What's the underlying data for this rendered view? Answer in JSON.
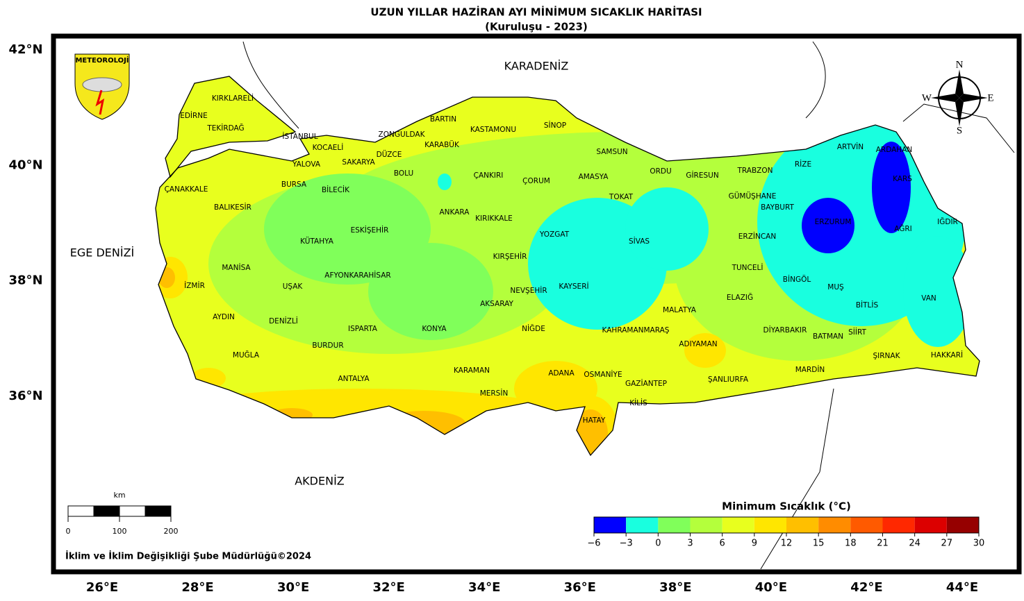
{
  "header": {
    "title": "UZUN YILLAR HAZİRAN AYI MİNİMUM SICAKLIK HARİTASI",
    "subtitle": "(Kuruluşu - 2023)"
  },
  "logo": {
    "text": "METEOROLOJİ"
  },
  "compass": {
    "north": "N",
    "east": "E",
    "south": "S",
    "west": "W"
  },
  "seas": [
    "KARADENİZ",
    "EGE DENİZİ",
    "AKDENİZ"
  ],
  "latitude_labels": [
    {
      "value": 42,
      "label": "42°N"
    },
    {
      "value": 40,
      "label": "40°N"
    },
    {
      "value": 38,
      "label": "38°N"
    },
    {
      "value": 36,
      "label": "36°N"
    }
  ],
  "longitude_labels": [
    {
      "value": 26,
      "label": "26°E"
    },
    {
      "value": 28,
      "label": "28°E"
    },
    {
      "value": 30,
      "label": "30°E"
    },
    {
      "value": 32,
      "label": "32°E"
    },
    {
      "value": 34,
      "label": "34°E"
    },
    {
      "value": 36,
      "label": "36°E"
    },
    {
      "value": 38,
      "label": "38°E"
    },
    {
      "value": 40,
      "label": "40°E"
    },
    {
      "value": 42,
      "label": "42°E"
    },
    {
      "value": 44,
      "label": "44°E"
    }
  ],
  "provinces": [
    "KIRKLARELİ",
    "EDİRNE",
    "TEKİRDAĞ",
    "İSTANBUL",
    "KOCAELİ",
    "YALOVA",
    "SAKARYA",
    "DÜZCE",
    "ZONGULDAK",
    "BARTIN",
    "KARABÜK",
    "KASTAMONU",
    "SİNOP",
    "SAMSUN",
    "ORDU",
    "GİRESUN",
    "TRABZON",
    "RİZE",
    "ARTVİN",
    "ARDAHAN",
    "KARS",
    "ÇANAKKALE",
    "BURSA",
    "BİLECİK",
    "BOLU",
    "ÇANKIRI",
    "ÇORUM",
    "AMASYA",
    "TOKAT",
    "GÜMÜŞHANE",
    "BAYBURT",
    "ERZURUM",
    "AĞRI",
    "IĞDIR",
    "BALIKESİR",
    "ANKARA",
    "KIRIKKALE",
    "YOZGAT",
    "SİVAS",
    "ERZİNCAN",
    "ESKİŞEHİR",
    "KÜTAHYA",
    "MANİSA",
    "KIRŞEHİR",
    "TUNCELİ",
    "AFYONKARAHİSAR",
    "UŞAK",
    "İZMİR",
    "KAYSERİ",
    "NEVŞEHİR",
    "BİNGÖL",
    "MUŞ",
    "ELAZIĞ",
    "VAN",
    "AKSARAY",
    "BİTLİS",
    "MALATYA",
    "AYDIN",
    "DENİZLİ",
    "ISPARTA",
    "KONYA",
    "NİĞDE",
    "KAHRAMANMARAŞ",
    "DİYARBAKIR",
    "SİİRT",
    "BATMAN",
    "ADIYAMAN",
    "BURDUR",
    "MUĞLA",
    "ŞIRNAK",
    "HAKKARİ",
    "KARAMAN",
    "ADANA",
    "OSMANİYE",
    "MARDİN",
    "ANTALYA",
    "ŞANLIURFA",
    "GAZİANTEP",
    "MERSİN",
    "KİLİS",
    "HATAY"
  ],
  "colorbar": {
    "title": "Minimum Sıcaklık (°C)",
    "ticks": [
      {
        "value": -6,
        "label": "−6"
      },
      {
        "value": -3,
        "label": "−3"
      },
      0,
      3,
      6,
      9,
      12,
      15,
      18,
      21,
      24,
      27,
      30
    ],
    "colors": [
      "#0000ff",
      "#19ffdf",
      "#80ff5a",
      "#b4ff3c",
      "#e8ff1e",
      "#ffe600",
      "#ffbf00",
      "#ff8c00",
      "#ff5a00",
      "#ff2800",
      "#dc0000",
      "#960000"
    ]
  },
  "scale_bar": {
    "unit": "km",
    "ticks": [
      0,
      100,
      200
    ]
  },
  "footer": "İklim ve İklim Değişikliği Şube Müdürlüğü©2024"
}
